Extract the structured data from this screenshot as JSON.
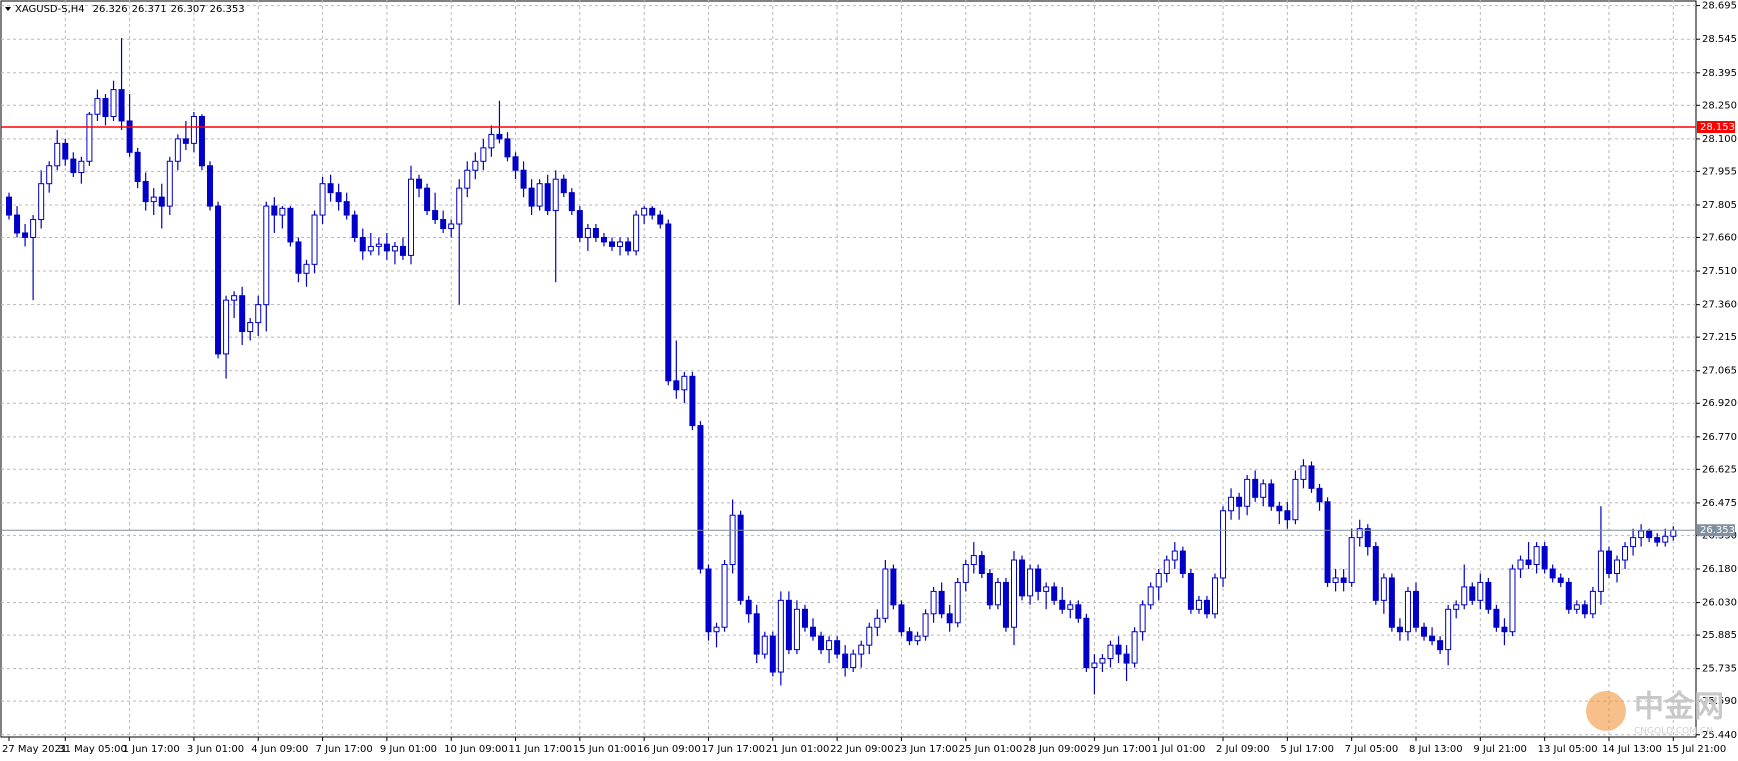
{
  "chart_data": {
    "type": "candlestick",
    "title": "XAGUSD-S,H4",
    "color": "#0000c8",
    "grid": true,
    "ylim": [
      25.43,
      28.72
    ],
    "yticks": [
      28.695,
      28.545,
      28.395,
      {
        "value": 28.25,
        "label": "28.250"
      },
      {
        "value": 28.1,
        "label": "28.100"
      },
      27.955,
      27.805,
      {
        "value": 27.66,
        "label": "27.660"
      },
      {
        "value": 27.51,
        "label": "27.510"
      },
      {
        "value": 27.36,
        "label": "27.360"
      },
      27.215,
      27.065,
      {
        "value": 26.92,
        "label": "26.920"
      },
      {
        "value": 26.77,
        "label": "26.770"
      },
      26.625,
      26.475,
      {
        "value": 26.33,
        "label": "26.330"
      },
      {
        "value": 26.18,
        "label": "26.180"
      },
      {
        "value": 26.03,
        "label": "26.030"
      },
      25.885,
      25.735,
      {
        "value": 25.59,
        "label": "25.590"
      },
      {
        "value": 25.44,
        "label": "25.440"
      }
    ],
    "hlines": [
      {
        "value": 28.153,
        "color": "#ff0000"
      },
      {
        "value": 26.353,
        "color": "#8090a0"
      }
    ],
    "watermark": {
      "text": "中金网",
      "sub": "CNGOLD.COM.CN"
    },
    "categories": [
      "27 May 2021",
      null,
      null,
      null,
      null,
      null,
      null,
      "31 May 05:00",
      null,
      null,
      null,
      null,
      null,
      null,
      null,
      "1 Jun 17:00",
      null,
      null,
      null,
      null,
      null,
      null,
      null,
      "3 Jun 01:00",
      null,
      null,
      null,
      null,
      null,
      null,
      null,
      "4 Jun 09:00",
      null,
      null,
      null,
      null,
      null,
      null,
      null,
      "7 Jun 17:00",
      null,
      null,
      null,
      null,
      null,
      null,
      null,
      "9 Jun 01:00",
      null,
      null,
      null,
      null,
      null,
      null,
      null,
      "10 Jun 09:00",
      null,
      null,
      null,
      null,
      null,
      null,
      null,
      "11 Jun 17:00",
      null,
      null,
      null,
      null,
      null,
      null,
      null,
      "15 Jun 01:00",
      null,
      null,
      null,
      null,
      null,
      null,
      null,
      "16 Jun 09:00",
      null,
      null,
      null,
      null,
      null,
      null,
      null,
      "17 Jun 17:00",
      null,
      null,
      null,
      null,
      null,
      null,
      null,
      "21 Jun 01:00",
      null,
      null,
      null,
      null,
      null,
      null,
      null,
      "22 Jun 09:00",
      null,
      null,
      null,
      null,
      null,
      null,
      null,
      "23 Jun 17:00",
      null,
      null,
      null,
      null,
      null,
      null,
      null,
      "25 Jun 01:00",
      null,
      null,
      null,
      null,
      null,
      null,
      null,
      "28 Jun 09:00",
      null,
      null,
      null,
      null,
      null,
      null,
      null,
      "29 Jun 17:00",
      null,
      null,
      null,
      null,
      null,
      null,
      null,
      "1 Jul 01:00",
      null,
      null,
      null,
      null,
      null,
      null,
      null,
      "2 Jul 09:00",
      null,
      null,
      null,
      null,
      null,
      null,
      null,
      "5 Jul 17:00",
      null,
      null,
      null,
      null,
      null,
      null,
      null,
      "7 Jul 05:00",
      null,
      null,
      null,
      null,
      null,
      null,
      null,
      "8 Jul 13:00",
      null,
      null,
      null,
      null,
      null,
      null,
      null,
      "9 Jul 21:00",
      null,
      null,
      null,
      null,
      null,
      null,
      null,
      "13 Jul 05:00",
      null,
      null,
      null,
      null,
      null,
      null,
      null,
      "14 Jul 13:00",
      null,
      null,
      null,
      null,
      null,
      null,
      null,
      "15 Jul 21:00"
    ],
    "ohlc": [
      [
        27.84,
        27.86,
        27.74,
        27.76
      ],
      [
        27.76,
        27.8,
        27.66,
        27.68
      ],
      [
        27.68,
        27.72,
        27.62,
        27.66
      ],
      [
        27.66,
        27.76,
        27.38,
        27.74
      ],
      [
        27.74,
        27.96,
        27.7,
        27.9
      ],
      [
        27.9,
        28.0,
        27.86,
        27.98
      ],
      [
        27.98,
        28.14,
        27.96,
        28.08
      ],
      [
        28.08,
        28.1,
        27.98,
        28.01
      ],
      [
        28.01,
        28.04,
        27.93,
        27.95
      ],
      [
        27.95,
        28.02,
        27.9,
        28.0
      ],
      [
        28.0,
        28.22,
        27.98,
        28.21
      ],
      [
        28.21,
        28.32,
        28.18,
        28.28
      ],
      [
        28.28,
        28.3,
        28.16,
        28.2
      ],
      [
        28.2,
        28.36,
        28.18,
        28.32
      ],
      [
        28.32,
        28.55,
        28.14,
        28.18
      ],
      [
        28.18,
        28.3,
        28.02,
        28.04
      ],
      [
        28.04,
        28.06,
        27.88,
        27.91
      ],
      [
        27.91,
        27.95,
        27.78,
        27.82
      ],
      [
        27.82,
        27.88,
        27.76,
        27.84
      ],
      [
        27.84,
        27.9,
        27.7,
        27.8
      ],
      [
        27.8,
        28.02,
        27.76,
        28.0
      ],
      [
        28.0,
        28.12,
        27.96,
        28.1
      ],
      [
        28.1,
        28.18,
        28.05,
        28.08
      ],
      [
        28.08,
        28.22,
        28.04,
        28.2
      ],
      [
        28.2,
        28.21,
        27.96,
        27.98
      ],
      [
        27.98,
        28.0,
        27.78,
        27.8
      ],
      [
        27.8,
        27.82,
        27.12,
        27.14
      ],
      [
        27.14,
        27.4,
        27.03,
        27.38
      ],
      [
        27.38,
        27.42,
        27.3,
        27.4
      ],
      [
        27.4,
        27.44,
        27.18,
        27.24
      ],
      [
        27.24,
        27.3,
        27.2,
        27.28
      ],
      [
        27.28,
        27.4,
        27.22,
        27.36
      ],
      [
        27.36,
        27.82,
        27.24,
        27.8
      ],
      [
        27.8,
        27.84,
        27.68,
        27.76
      ],
      [
        27.76,
        27.8,
        27.7,
        27.79
      ],
      [
        27.79,
        27.8,
        27.62,
        27.64
      ],
      [
        27.64,
        27.66,
        27.46,
        27.5
      ],
      [
        27.5,
        27.56,
        27.44,
        27.54
      ],
      [
        27.54,
        27.78,
        27.5,
        27.76
      ],
      [
        27.76,
        27.93,
        27.72,
        27.9
      ],
      [
        27.9,
        27.94,
        27.82,
        27.86
      ],
      [
        27.86,
        27.9,
        27.78,
        27.82
      ],
      [
        27.82,
        27.86,
        27.74,
        27.76
      ],
      [
        27.76,
        27.78,
        27.64,
        27.66
      ],
      [
        27.66,
        27.7,
        27.56,
        27.6
      ],
      [
        27.6,
        27.68,
        27.58,
        27.62
      ],
      [
        27.62,
        27.66,
        27.58,
        27.63
      ],
      [
        27.63,
        27.68,
        27.56,
        27.6
      ],
      [
        27.6,
        27.64,
        27.54,
        27.62
      ],
      [
        27.62,
        27.66,
        27.56,
        27.58
      ],
      [
        27.58,
        27.98,
        27.54,
        27.92
      ],
      [
        27.92,
        27.94,
        27.84,
        27.88
      ],
      [
        27.88,
        27.9,
        27.76,
        27.78
      ],
      [
        27.78,
        27.86,
        27.72,
        27.74
      ],
      [
        27.74,
        27.78,
        27.68,
        27.7
      ],
      [
        27.7,
        27.74,
        27.66,
        27.72
      ],
      [
        27.72,
        27.92,
        27.36,
        27.88
      ],
      [
        27.88,
        28.0,
        27.84,
        27.96
      ],
      [
        27.96,
        28.04,
        27.92,
        28.0
      ],
      [
        28.0,
        28.1,
        27.96,
        28.06
      ],
      [
        28.06,
        28.16,
        28.02,
        28.12
      ],
      [
        28.12,
        28.27,
        28.08,
        28.1
      ],
      [
        28.1,
        28.13,
        28.0,
        28.02
      ],
      [
        28.02,
        28.04,
        27.92,
        27.96
      ],
      [
        27.96,
        28.0,
        27.84,
        27.88
      ],
      [
        27.88,
        27.92,
        27.76,
        27.8
      ],
      [
        27.8,
        27.92,
        27.78,
        27.9
      ],
      [
        27.9,
        27.94,
        27.76,
        27.78
      ],
      [
        27.78,
        27.96,
        27.46,
        27.92
      ],
      [
        27.92,
        27.94,
        27.84,
        27.86
      ],
      [
        27.86,
        27.88,
        27.76,
        27.78
      ],
      [
        27.78,
        27.8,
        27.64,
        27.66
      ],
      [
        27.66,
        27.72,
        27.6,
        27.7
      ],
      [
        27.7,
        27.72,
        27.64,
        27.66
      ],
      [
        27.66,
        27.68,
        27.62,
        27.64
      ],
      [
        27.64,
        27.66,
        27.6,
        27.62
      ],
      [
        27.62,
        27.66,
        27.58,
        27.64
      ],
      [
        27.64,
        27.66,
        27.58,
        27.6
      ],
      [
        27.6,
        27.78,
        27.58,
        27.76
      ],
      [
        27.76,
        27.8,
        27.72,
        27.79
      ],
      [
        27.79,
        27.8,
        27.74,
        27.76
      ],
      [
        27.76,
        27.78,
        27.7,
        27.72
      ],
      [
        27.72,
        27.74,
        27.0,
        27.02
      ],
      [
        27.02,
        27.2,
        26.94,
        26.98
      ],
      [
        26.98,
        27.06,
        26.92,
        27.04
      ],
      [
        27.04,
        27.06,
        26.8,
        26.82
      ],
      [
        26.82,
        26.84,
        26.16,
        26.18
      ],
      [
        26.18,
        26.2,
        25.86,
        25.9
      ],
      [
        25.9,
        25.94,
        25.83,
        25.92
      ],
      [
        25.92,
        26.22,
        25.9,
        26.2
      ],
      [
        26.2,
        26.49,
        26.16,
        26.42
      ],
      [
        26.42,
        26.44,
        26.02,
        26.04
      ],
      [
        26.04,
        26.06,
        25.94,
        25.98
      ],
      [
        25.98,
        26.02,
        25.76,
        25.8
      ],
      [
        25.8,
        25.9,
        25.78,
        25.88
      ],
      [
        25.88,
        25.9,
        25.7,
        25.72
      ],
      [
        25.72,
        26.08,
        25.66,
        26.04
      ],
      [
        26.04,
        26.08,
        25.8,
        25.82
      ],
      [
        25.82,
        26.04,
        25.8,
        26.0
      ],
      [
        26.0,
        26.02,
        25.9,
        25.92
      ],
      [
        25.92,
        25.96,
        25.86,
        25.88
      ],
      [
        25.88,
        25.9,
        25.8,
        25.82
      ],
      [
        25.82,
        25.88,
        25.76,
        25.86
      ],
      [
        25.86,
        25.88,
        25.78,
        25.8
      ],
      [
        25.8,
        25.84,
        25.7,
        25.74
      ],
      [
        25.74,
        25.82,
        25.72,
        25.8
      ],
      [
        25.8,
        25.86,
        25.74,
        25.84
      ],
      [
        25.84,
        25.94,
        25.8,
        25.92
      ],
      [
        25.92,
        26.0,
        25.88,
        25.96
      ],
      [
        25.96,
        26.22,
        25.94,
        26.18
      ],
      [
        26.18,
        26.2,
        26.0,
        26.02
      ],
      [
        26.02,
        26.04,
        25.88,
        25.9
      ],
      [
        25.9,
        25.92,
        25.84,
        25.86
      ],
      [
        25.86,
        25.9,
        25.84,
        25.88
      ],
      [
        25.88,
        26.0,
        25.86,
        25.98
      ],
      [
        25.98,
        26.1,
        25.94,
        26.08
      ],
      [
        26.08,
        26.12,
        25.96,
        25.98
      ],
      [
        25.98,
        26.02,
        25.9,
        25.94
      ],
      [
        25.94,
        26.14,
        25.92,
        26.12
      ],
      [
        26.12,
        26.22,
        26.08,
        26.2
      ],
      [
        26.2,
        26.3,
        26.16,
        26.24
      ],
      [
        26.24,
        26.26,
        26.14,
        26.16
      ],
      [
        26.16,
        26.18,
        26.0,
        26.02
      ],
      [
        26.02,
        26.14,
        26.0,
        26.12
      ],
      [
        26.12,
        26.14,
        25.9,
        25.92
      ],
      [
        25.92,
        26.26,
        25.84,
        26.22
      ],
      [
        26.22,
        26.24,
        26.04,
        26.06
      ],
      [
        26.06,
        26.2,
        26.02,
        26.18
      ],
      [
        26.18,
        26.2,
        26.04,
        26.08
      ],
      [
        26.08,
        26.12,
        26.0,
        26.1
      ],
      [
        26.1,
        26.12,
        26.02,
        26.04
      ],
      [
        26.04,
        26.1,
        25.98,
        26.0
      ],
      [
        26.0,
        26.04,
        25.96,
        26.02
      ],
      [
        26.02,
        26.04,
        25.94,
        25.96
      ],
      [
        25.96,
        25.98,
        25.72,
        25.74
      ],
      [
        25.74,
        25.8,
        25.62,
        25.76
      ],
      [
        25.76,
        25.8,
        25.72,
        25.78
      ],
      [
        25.78,
        25.86,
        25.74,
        25.84
      ],
      [
        25.84,
        25.88,
        25.76,
        25.8
      ],
      [
        25.8,
        25.84,
        25.68,
        25.76
      ],
      [
        25.76,
        25.92,
        25.74,
        25.9
      ],
      [
        25.9,
        26.04,
        25.86,
        26.02
      ],
      [
        26.02,
        26.12,
        26.0,
        26.1
      ],
      [
        26.1,
        26.18,
        26.04,
        26.16
      ],
      [
        26.16,
        26.24,
        26.12,
        26.22
      ],
      [
        26.22,
        26.3,
        26.18,
        26.26
      ],
      [
        26.26,
        26.28,
        26.14,
        26.16
      ],
      [
        26.16,
        26.18,
        25.98,
        26.0
      ],
      [
        26.0,
        26.06,
        25.98,
        26.04
      ],
      [
        26.04,
        26.06,
        25.96,
        25.98
      ],
      [
        25.98,
        26.16,
        25.96,
        26.14
      ],
      [
        26.14,
        26.46,
        26.1,
        26.44
      ],
      [
        26.44,
        26.54,
        26.4,
        26.5
      ],
      [
        26.5,
        26.52,
        26.4,
        26.46
      ],
      [
        26.46,
        26.6,
        26.42,
        26.58
      ],
      [
        26.58,
        26.62,
        26.48,
        26.5
      ],
      [
        26.5,
        26.58,
        26.46,
        26.56
      ],
      [
        26.56,
        26.58,
        26.44,
        26.46
      ],
      [
        26.46,
        26.48,
        26.38,
        26.44
      ],
      [
        26.44,
        26.48,
        26.36,
        26.4
      ],
      [
        26.4,
        26.62,
        26.38,
        26.58
      ],
      [
        26.58,
        26.67,
        26.54,
        26.64
      ],
      [
        26.64,
        26.66,
        26.52,
        26.54
      ],
      [
        26.54,
        26.56,
        26.44,
        26.48
      ],
      [
        26.48,
        26.5,
        26.1,
        26.12
      ],
      [
        26.12,
        26.18,
        26.08,
        26.14
      ],
      [
        26.14,
        26.18,
        26.08,
        26.12
      ],
      [
        26.12,
        26.36,
        26.1,
        26.32
      ],
      [
        26.32,
        26.4,
        26.28,
        26.36
      ],
      [
        26.36,
        26.38,
        26.24,
        26.28
      ],
      [
        26.28,
        26.3,
        26.02,
        26.04
      ],
      [
        26.04,
        26.16,
        25.98,
        26.14
      ],
      [
        26.14,
        26.16,
        25.9,
        25.92
      ],
      [
        25.92,
        25.96,
        25.86,
        25.9
      ],
      [
        25.9,
        26.1,
        25.86,
        26.08
      ],
      [
        26.08,
        26.12,
        25.9,
        25.92
      ],
      [
        25.92,
        25.94,
        25.86,
        25.88
      ],
      [
        25.88,
        25.92,
        25.84,
        25.86
      ],
      [
        25.86,
        25.88,
        25.8,
        25.82
      ],
      [
        25.82,
        26.02,
        25.75,
        26.0
      ],
      [
        26.0,
        26.04,
        25.96,
        26.02
      ],
      [
        26.02,
        26.2,
        26.0,
        26.1
      ],
      [
        26.1,
        26.12,
        26.02,
        26.04
      ],
      [
        26.04,
        26.16,
        26.0,
        26.12
      ],
      [
        26.12,
        26.14,
        25.98,
        26.0
      ],
      [
        26.0,
        26.02,
        25.9,
        25.92
      ],
      [
        25.92,
        25.96,
        25.84,
        25.9
      ],
      [
        25.9,
        26.2,
        25.88,
        26.18
      ],
      [
        26.18,
        26.24,
        26.14,
        26.22
      ],
      [
        26.22,
        26.3,
        26.18,
        26.2
      ],
      [
        26.2,
        26.3,
        26.16,
        26.28
      ],
      [
        26.28,
        26.3,
        26.16,
        26.18
      ],
      [
        26.18,
        26.2,
        26.12,
        26.14
      ],
      [
        26.14,
        26.16,
        26.1,
        26.12
      ],
      [
        26.12,
        26.14,
        25.98,
        26.0
      ],
      [
        26.0,
        26.04,
        25.98,
        26.02
      ],
      [
        26.02,
        26.04,
        25.96,
        25.98
      ],
      [
        25.98,
        26.1,
        25.96,
        26.08
      ],
      [
        26.08,
        26.46,
        26.02,
        26.26
      ],
      [
        26.26,
        26.28,
        26.14,
        26.16
      ],
      [
        26.16,
        26.24,
        26.12,
        26.22
      ],
      [
        26.22,
        26.3,
        26.18,
        26.28
      ],
      [
        26.28,
        26.36,
        26.24,
        26.32
      ],
      [
        26.32,
        26.38,
        26.28,
        26.35
      ],
      [
        26.35,
        26.36,
        26.3,
        26.32
      ],
      [
        26.32,
        26.34,
        26.28,
        26.3
      ],
      [
        26.3,
        26.36,
        26.28,
        26.326
      ],
      [
        26.326,
        26.371,
        26.307,
        26.353
      ]
    ]
  }
}
